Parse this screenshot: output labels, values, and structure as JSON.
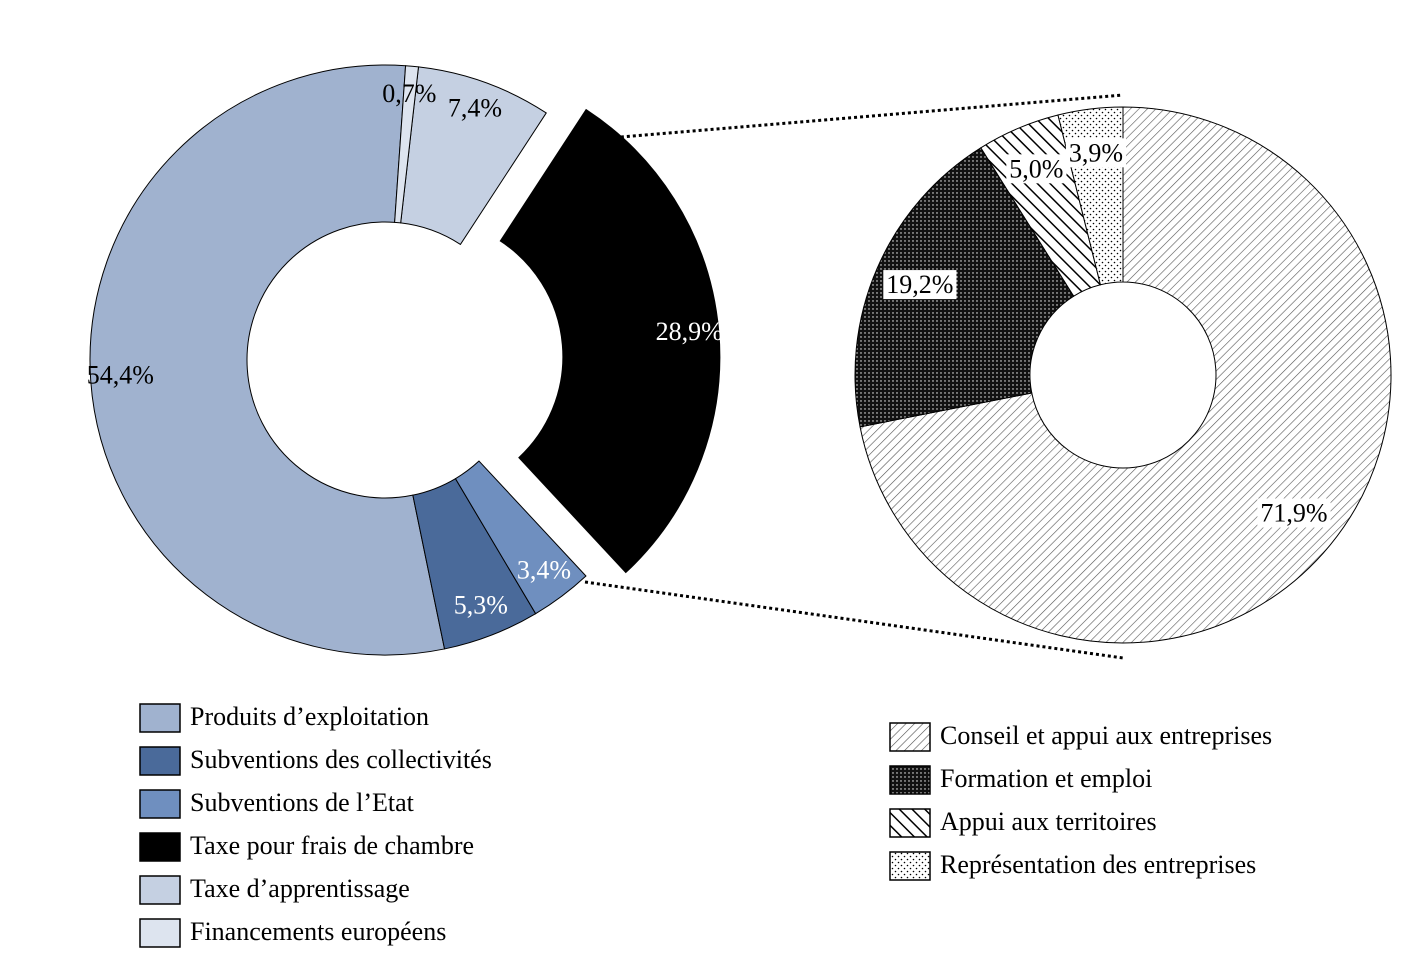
{
  "chart_data": [
    {
      "type": "donut",
      "categories": [
        "Produits d’exploitation",
        "Subventions des collectivités",
        "Subventions de l’Etat",
        "Taxe pour frais de chambre",
        "Taxe d’apprentissage",
        "Financements européens"
      ],
      "values": [
        54.4,
        5.3,
        3.4,
        28.9,
        7.4,
        0.7
      ],
      "value_labels": [
        "54,4%",
        "5,3%",
        "3,4%",
        "28,9%",
        "7,4%",
        "0,7%"
      ],
      "colors": [
        "#a0b2cf",
        "#4a6a9a",
        "#6f8fbf",
        "#000000",
        "#c5d0e2",
        "#dde4ef"
      ]
    },
    {
      "type": "donut",
      "categories": [
        "Conseil et appui aux entreprises",
        "Formation et emploi",
        "Appui aux territoires",
        "Représentation des entreprises"
      ],
      "values": [
        71.9,
        19.2,
        5.0,
        3.9
      ],
      "value_labels": [
        "71,9%",
        "19,2%",
        "5,0%",
        "3,9%"
      ]
    }
  ]
}
